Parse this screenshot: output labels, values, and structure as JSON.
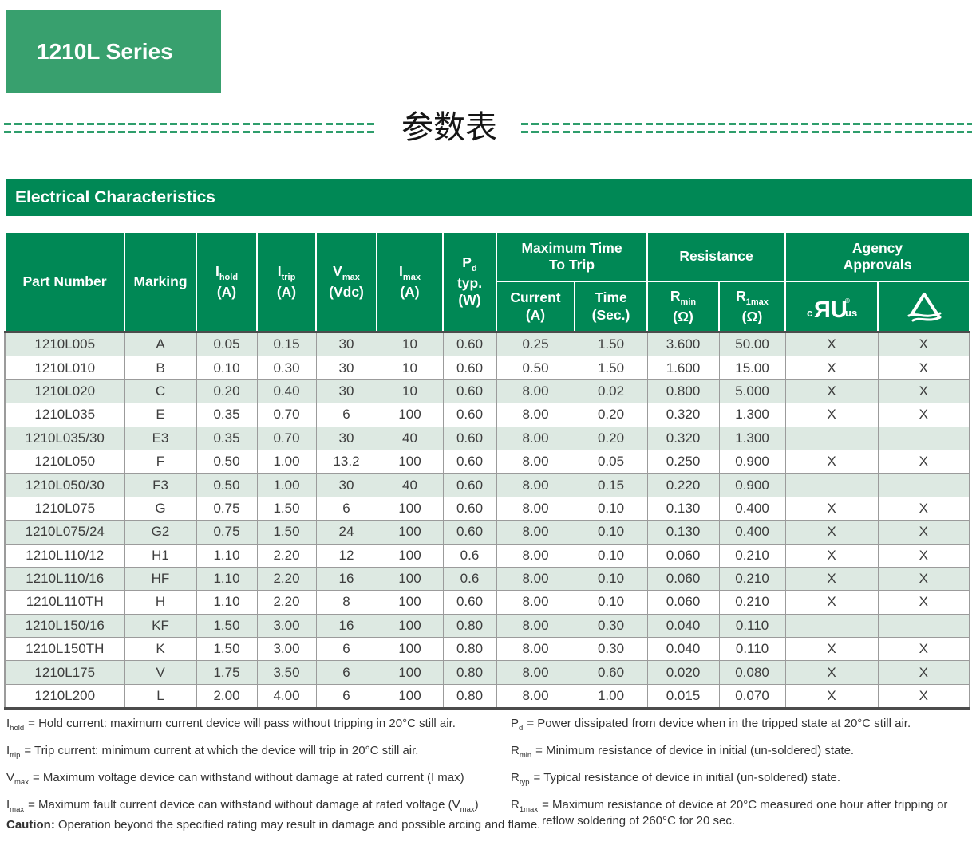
{
  "page": {
    "series_badge": "1210L Series",
    "cn_title": "参数表"
  },
  "colors": {
    "badge_green": "#38a06e",
    "deep_green": "#008855",
    "row_alt_green": "#dde9e2",
    "dash_green": "#2f9e6c",
    "border_gray": "#9b9b9b",
    "heavy_border": "#4c4c4c"
  },
  "section": {
    "title": "Electrical Characteristics"
  },
  "table": {
    "columns": {
      "part_number": "Part Number",
      "marking": "Marking",
      "i_hold": {
        "base": "I",
        "sub": "hold",
        "unit": "(A)"
      },
      "i_trip": {
        "base": "I",
        "sub": "trip",
        "unit": "(A)"
      },
      "v_max": {
        "base": "V",
        "sub": "max",
        "unit": "(Vdc)"
      },
      "i_max": {
        "base": "I",
        "sub": "max",
        "unit": "(A)"
      },
      "p_d": {
        "base": "P",
        "sub": "d",
        "line2": "typ.",
        "unit": "(W)"
      },
      "max_time_group": {
        "line1": "Maximum Time",
        "line2": "To Trip"
      },
      "current": {
        "base": "Current",
        "unit": "(A)"
      },
      "time": {
        "base": "Time",
        "unit": "(Sec.)"
      },
      "resistance_group": "Resistance",
      "r_min": {
        "base": "R",
        "sub": "min",
        "unit": "(Ω)"
      },
      "r_1max": {
        "base": "R",
        "sub": "1max",
        "unit": "(Ω)"
      },
      "agency_group": {
        "line1": "Agency",
        "line2": "Approvals"
      },
      "ul_mark": {
        "c": "c",
        "letters": "ЯU",
        "us": "us",
        "reg": "®"
      },
      "triangle_mark": "triangle-cert-mark"
    },
    "rows": [
      [
        "1210L005",
        "A",
        "0.05",
        "0.15",
        "30",
        "10",
        "0.60",
        "0.25",
        "1.50",
        "3.600",
        "50.00",
        "X",
        "X"
      ],
      [
        "1210L010",
        "B",
        "0.10",
        "0.30",
        "30",
        "10",
        "0.60",
        "0.50",
        "1.50",
        "1.600",
        "15.00",
        "X",
        "X"
      ],
      [
        "1210L020",
        "C",
        "0.20",
        "0.40",
        "30",
        "10",
        "0.60",
        "8.00",
        "0.02",
        "0.800",
        "5.000",
        "X",
        "X"
      ],
      [
        "1210L035",
        "E",
        "0.35",
        "0.70",
        "6",
        "100",
        "0.60",
        "8.00",
        "0.20",
        "0.320",
        "1.300",
        "X",
        "X"
      ],
      [
        "1210L035/30",
        "E3",
        "0.35",
        "0.70",
        "30",
        "40",
        "0.60",
        "8.00",
        "0.20",
        "0.320",
        "1.300",
        "",
        ""
      ],
      [
        "1210L050",
        "F",
        "0.50",
        "1.00",
        "13.2",
        "100",
        "0.60",
        "8.00",
        "0.05",
        "0.250",
        "0.900",
        "X",
        "X"
      ],
      [
        "1210L050/30",
        "F3",
        "0.50",
        "1.00",
        "30",
        "40",
        "0.60",
        "8.00",
        "0.15",
        "0.220",
        "0.900",
        "",
        ""
      ],
      [
        "1210L075",
        "G",
        "0.75",
        "1.50",
        "6",
        "100",
        "0.60",
        "8.00",
        "0.10",
        "0.130",
        "0.400",
        "X",
        "X"
      ],
      [
        "1210L075/24",
        "G2",
        "0.75",
        "1.50",
        "24",
        "100",
        "0.60",
        "8.00",
        "0.10",
        "0.130",
        "0.400",
        "X",
        "X"
      ],
      [
        "1210L110/12",
        "H1",
        "1.10",
        "2.20",
        "12",
        "100",
        "0.6",
        "8.00",
        "0.10",
        "0.060",
        "0.210",
        "X",
        "X"
      ],
      [
        "1210L110/16",
        "HF",
        "1.10",
        "2.20",
        "16",
        "100",
        "0.6",
        "8.00",
        "0.10",
        "0.060",
        "0.210",
        "X",
        "X"
      ],
      [
        "1210L110TH",
        "H",
        "1.10",
        "2.20",
        "8",
        "100",
        "0.60",
        "8.00",
        "0.10",
        "0.060",
        "0.210",
        "X",
        "X"
      ],
      [
        "1210L150/16",
        "KF",
        "1.50",
        "3.00",
        "16",
        "100",
        "0.80",
        "8.00",
        "0.30",
        "0.040",
        "0.110",
        "",
        ""
      ],
      [
        "1210L150TH",
        "K",
        "1.50",
        "3.00",
        "6",
        "100",
        "0.80",
        "8.00",
        "0.30",
        "0.040",
        "0.110",
        "X",
        "X"
      ],
      [
        "1210L175",
        "V",
        "1.75",
        "3.50",
        "6",
        "100",
        "0.80",
        "8.00",
        "0.60",
        "0.020",
        "0.080",
        "X",
        "X"
      ],
      [
        "1210L200",
        "L",
        "2.00",
        "4.00",
        "6",
        "100",
        "0.80",
        "8.00",
        "1.00",
        "0.015",
        "0.070",
        "X",
        "X"
      ]
    ]
  },
  "footnotes": {
    "left": [
      {
        "base": "I",
        "sub": "hold",
        "text": "= Hold current: maximum current device will pass without tripping in 20°C still air."
      },
      {
        "base": "I",
        "sub": "trip",
        "text": "= Trip current: minimum current at which the device will trip in 20°C still air."
      },
      {
        "base": "V",
        "sub": "max",
        "text": "= Maximum voltage device can withstand without damage at rated current (I max)"
      },
      {
        "base": "I",
        "sub": "max",
        "text": "= Maximum fault current device can withstand without damage at rated voltage (V",
        "tail_sub": "max",
        "tail": ")"
      }
    ],
    "right": [
      {
        "base": "P",
        "sub": "d",
        "text": "= Power dissipated from device when in the tripped state at 20°C still air."
      },
      {
        "base": "R",
        "sub": "min",
        "text": "= Minimum resistance of device in initial (un-soldered) state."
      },
      {
        "base": "R",
        "sub": "typ",
        "text": "= Typical resistance of device in initial (un-soldered) state."
      },
      {
        "base": "R",
        "sub": "1max",
        "text": "= Maximum resistance of device at 20°C measured one hour after tripping or reflow soldering of 260°C for 20 sec."
      }
    ],
    "caution_label": "Caution:",
    "caution_text": "Operation beyond the specified rating may result in damage and possible arcing and flame."
  }
}
